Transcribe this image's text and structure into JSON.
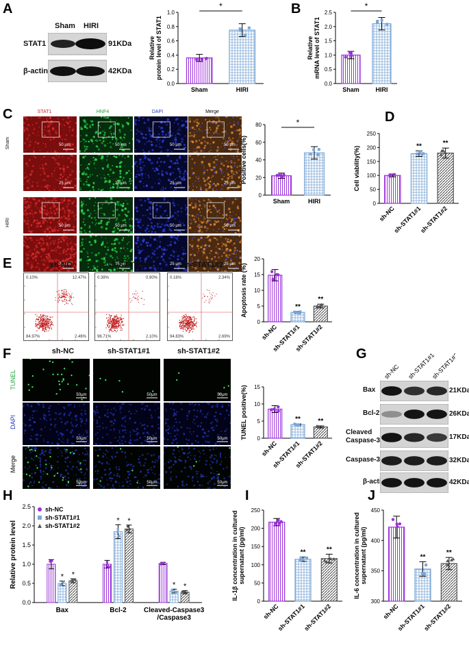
{
  "panels": {
    "A": {
      "label": "A",
      "blot_groups": [
        "Sham",
        "HIRI"
      ],
      "blot_rows": [
        {
          "name": "STAT1",
          "kda": "91KDa"
        },
        {
          "name": "β-actin",
          "kda": "42KDa"
        }
      ],
      "sig": "*"
    },
    "B": {
      "label": "B",
      "sig": "*"
    },
    "C": {
      "label": "C",
      "channels": [
        "STAT1",
        "HNF4",
        "DAPI",
        "Merge"
      ],
      "rows": [
        "Sham",
        "HIRI"
      ],
      "scale_big": "50 μm",
      "scale_small": "25 μm",
      "sig": "*"
    },
    "D": {
      "label": "D",
      "sig": [
        "**",
        "**"
      ]
    },
    "E": {
      "label": "E",
      "groups": [
        "sh-NC",
        "sh-STAT1#1",
        "sh-STAT1#2"
      ],
      "quadrants": [
        {
          "ul": "0.10%",
          "ur": "12.47%",
          "ll": "84.97%",
          "lr": "2.46%"
        },
        {
          "ul": "0.38%",
          "ur": "0.90%",
          "ll": "96.71%",
          "lr": "2.10%"
        },
        {
          "ul": "0.16%",
          "ur": "2.34%",
          "ll": "94.83%",
          "lr": "2.69%"
        }
      ],
      "sig": [
        "**",
        "**"
      ]
    },
    "F": {
      "label": "F",
      "groups": [
        "sh-NC",
        "sh-STAT1#1",
        "sh-STAT1#2"
      ],
      "rows": [
        "TUNEL",
        "DAPI",
        "Merge"
      ],
      "scale": "50μm",
      "sig": [
        "**",
        "**"
      ]
    },
    "G": {
      "label": "G",
      "groups": [
        "sh-NC",
        "sh-STAT1#1",
        "sh-STAT1#2"
      ],
      "rows": [
        {
          "name": "Bax",
          "kda": "21KDa"
        },
        {
          "name": "Bcl-2",
          "kda": "26KDa"
        },
        {
          "name": "Cleaved\nCaspase-3",
          "name1": "Cleaved",
          "name2": "Caspase-3",
          "kda": "17KDa"
        },
        {
          "name": "Caspase-3",
          "kda": "32KDa"
        },
        {
          "name": "β-actin",
          "kda": "42KDa"
        }
      ]
    },
    "H": {
      "label": "H"
    },
    "I": {
      "label": "I",
      "sig": [
        "**",
        "**"
      ]
    },
    "J": {
      "label": "J",
      "sig": [
        "**",
        "**"
      ]
    }
  },
  "chart_data": [
    {
      "id": "A-chart",
      "type": "bar",
      "categories": [
        "Sham",
        "HIRI"
      ],
      "values": [
        0.36,
        0.75
      ],
      "errors": [
        0.05,
        0.09
      ],
      "ylabel": "Relative\nprotein level of STAT1",
      "ylabel1": "Relative",
      "ylabel2": "protein level of STAT1",
      "ylim": [
        0,
        1.0
      ],
      "yticks": [
        "0.0",
        "0.2",
        "0.4",
        "0.6",
        "0.8",
        "1.0"
      ],
      "colors": [
        "#9b30d9",
        "#7aa6d6"
      ]
    },
    {
      "id": "B-chart",
      "type": "bar",
      "categories": [
        "Sham",
        "HIRI"
      ],
      "values": [
        1.0,
        2.1
      ],
      "errors": [
        0.13,
        0.22
      ],
      "ylabel": "Relative\nmRNA level of STAT1",
      "ylabel1": "Relative",
      "ylabel2": "mRNA level of STAT1",
      "ylim": [
        0,
        2.5
      ],
      "yticks": [
        "0.0",
        "0.5",
        "1.0",
        "1.5",
        "2.0",
        "2.5"
      ],
      "colors": [
        "#9b30d9",
        "#7aa6d6"
      ]
    },
    {
      "id": "C-chart",
      "type": "bar",
      "categories": [
        "Sham",
        "HIRI"
      ],
      "values": [
        22,
        48
      ],
      "errors": [
        3,
        7
      ],
      "ylabel": "Positive cells(%)",
      "ylim": [
        0,
        80
      ],
      "yticks": [
        "0",
        "20",
        "40",
        "60",
        "80"
      ],
      "colors": [
        "#9b30d9",
        "#7aa6d6"
      ]
    },
    {
      "id": "D-chart",
      "type": "bar",
      "categories": [
        "sh-NC",
        "sh-STAT1#1",
        "sh-STAT1#2"
      ],
      "values": [
        100,
        178,
        180
      ],
      "errors": [
        5,
        10,
        18
      ],
      "ylabel": "Cell viability(%)",
      "ylim": [
        0,
        250
      ],
      "yticks": [
        "0",
        "50",
        "100",
        "150",
        "200",
        "250"
      ],
      "colors": [
        "#9b30d9",
        "#7aa6d6",
        "#555555"
      ]
    },
    {
      "id": "E-chart",
      "type": "bar",
      "categories": [
        "sh-NC",
        "sh-STAT1#1",
        "sh-STAT1#2"
      ],
      "values": [
        14.8,
        3.0,
        5.0
      ],
      "errors": [
        1.8,
        0.3,
        0.6
      ],
      "ylabel": "Apoptosis rate (%)",
      "ylim": [
        0,
        20
      ],
      "yticks": [
        "0",
        "5",
        "10",
        "15",
        "20"
      ],
      "colors": [
        "#9b30d9",
        "#7aa6d6",
        "#555555"
      ]
    },
    {
      "id": "F-chart",
      "type": "bar",
      "categories": [
        "sh-NC",
        "sh-STAT1#1",
        "sh-STAT1#2"
      ],
      "values": [
        8.5,
        4.0,
        3.3
      ],
      "errors": [
        1.0,
        0.2,
        0.3
      ],
      "ylabel": "TUNEL positive(%)",
      "ylim": [
        0,
        15
      ],
      "yticks": [
        "0",
        "5",
        "10",
        "15"
      ],
      "colors": [
        "#9b30d9",
        "#7aa6d6",
        "#555555"
      ]
    },
    {
      "id": "H-chart",
      "type": "bar",
      "categories": [
        "Bax",
        "Bcl-2",
        "Cleaved-Caspase3\n/Caspase3"
      ],
      "cat_lines": [
        [
          "Bax"
        ],
        [
          "Bcl-2"
        ],
        [
          "Cleaved-Caspase3",
          "/Caspase3"
        ]
      ],
      "series": [
        {
          "name": "sh-NC",
          "values": [
            1.0,
            1.0,
            1.02
          ],
          "errors": [
            0.12,
            0.1,
            0.03
          ],
          "color": "#9b30d9"
        },
        {
          "name": "sh-STAT1#1",
          "values": [
            0.5,
            1.85,
            0.3
          ],
          "errors": [
            0.06,
            0.18,
            0.05
          ],
          "color": "#7aa6d6"
        },
        {
          "name": "sh-STAT1#2",
          "values": [
            0.57,
            1.92,
            0.27
          ],
          "errors": [
            0.05,
            0.1,
            0.04
          ],
          "color": "#555555"
        }
      ],
      "sig": [
        "*",
        "*",
        "*",
        "*",
        "*",
        "*"
      ],
      "ylabel": "Relative  protein level",
      "ylim": [
        0,
        2.5
      ],
      "yticks": [
        "0.0",
        "0.5",
        "1.0",
        "1.5",
        "2.0",
        "2.5"
      ],
      "legend": "top-left"
    },
    {
      "id": "I-chart",
      "type": "bar",
      "categories": [
        "sh-NC",
        "sh-STAT1#1",
        "sh-STAT1#2"
      ],
      "values": [
        217,
        115,
        117
      ],
      "errors": [
        10,
        6,
        12
      ],
      "ylabel": "IL-1β concentration in cultured\nsupernatant (pg/ml)",
      "ylabel1": "IL-1β concentration in cultured",
      "ylabel2": "supernatant (pg/ml)",
      "ylim": [
        0,
        250
      ],
      "yticks": [
        "0",
        "50",
        "100",
        "150",
        "200",
        "250"
      ],
      "colors": [
        "#9b30d9",
        "#7aa6d6",
        "#555555"
      ]
    },
    {
      "id": "J-chart",
      "type": "bar",
      "categories": [
        "sh-NC",
        "sh-STAT1#1",
        "sh-STAT1#2"
      ],
      "values": [
        422,
        353,
        362
      ],
      "errors": [
        18,
        12,
        10
      ],
      "ylabel": "IL-6 concentration in cultured\nsupernatant (pg/ml)",
      "ylabel1": "IL-6 concentration in cultured",
      "ylabel2": "supernatant (pg/ml)",
      "ylim": [
        300,
        450
      ],
      "yticks": [
        "300",
        "350",
        "400",
        "450"
      ],
      "colors": [
        "#9b30d9",
        "#7aa6d6",
        "#555555"
      ]
    }
  ]
}
